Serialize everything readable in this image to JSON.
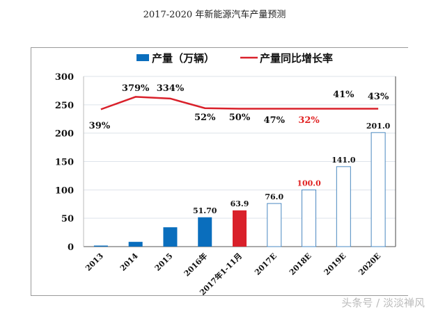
{
  "chart_data": {
    "type": "bar+line",
    "title": "2017-2020 年新能源汽车产量预测",
    "categories": [
      "2013",
      "2014",
      "2015",
      "2016年",
      "2017年1-11月",
      "2017E",
      "2018E",
      "2019E",
      "2020E"
    ],
    "ylim": [
      0,
      300
    ],
    "yticks": [
      "0",
      "50",
      "100",
      "150",
      "200",
      "250",
      "300"
    ],
    "grid": true,
    "legend": "top",
    "series": [
      {
        "name": "产量（万辆）",
        "type": "bar",
        "values": [
          1.8,
          8.4,
          34.1,
          51.7,
          63.9,
          76.0,
          100.0,
          141.0,
          201.0
        ],
        "labels": [
          "",
          "",
          "",
          "51.70",
          "63.9",
          "76.0",
          "100.0",
          "141.0",
          "201.0"
        ],
        "styles": [
          "solid",
          "solid",
          "solid",
          "solid",
          "red",
          "outline",
          "outline",
          "outline",
          "outline"
        ],
        "label_colors": [
          "#111",
          "#111",
          "#111",
          "#111",
          "#111",
          "#111",
          "#e02020",
          "#111",
          "#111"
        ]
      },
      {
        "name": "产量同比增长率",
        "type": "line",
        "values": [
          242,
          264,
          261,
          244,
          243,
          243,
          243,
          243,
          243
        ],
        "labels": [
          "39%",
          "379%",
          "334%",
          "52%",
          "50%",
          "47%",
          "32%",
          "41%",
          "43%"
        ],
        "label_colors": [
          "#111",
          "#111",
          "#111",
          "#111",
          "#111",
          "#111",
          "#e02020",
          "#111",
          "#111"
        ]
      }
    ],
    "colors": {
      "bar": "#0a6ebd",
      "highlight": "#d9202a",
      "line": "#d9202a",
      "outline": "#4a88c0"
    }
  },
  "watermark": "头条号 / 淡淡禅风"
}
